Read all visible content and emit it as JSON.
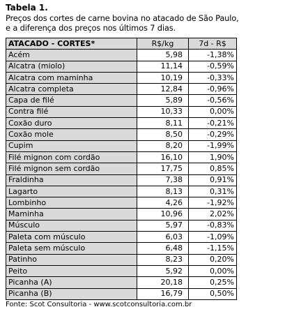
{
  "title": "Tabela 1.",
  "subtitle": [
    "Preços dos cortes de carne bovina no atacado de São Paulo,",
    "e a diferença dos preços nos últimos 7 dias."
  ],
  "table": {
    "header": [
      "ATACADO - CORTES*",
      "R$/kg",
      "7d - R$"
    ],
    "rows": [
      [
        "Acém",
        "5,98",
        "-1,38%"
      ],
      [
        "Alcatra (miolo)",
        "11,14",
        "-0,59%"
      ],
      [
        "Alcatra com maminha",
        "10,19",
        "-0,33%"
      ],
      [
        "Alcatra completa",
        "12,84",
        "-0,96%"
      ],
      [
        "Capa de filé",
        "5,89",
        "-0,56%"
      ],
      [
        "Contra filé",
        "10,33",
        "0,00%"
      ],
      [
        "Coxão duro",
        "8,11",
        "-0,21%"
      ],
      [
        "Coxão mole",
        "8,50",
        "-0,29%"
      ],
      [
        "Cupim",
        "8,20",
        "-1,99%"
      ],
      [
        "Filé mignon com cordão",
        "16,10",
        "1,90%"
      ],
      [
        "Filé mignon sem cordão",
        "17,75",
        "0,85%"
      ],
      [
        "Fraldinha",
        "7,38",
        "0,91%"
      ],
      [
        "Lagarto",
        "8,13",
        "0,31%"
      ],
      [
        "Lombinho",
        "4,26",
        "-1,92%"
      ],
      [
        "Maminha",
        "10,96",
        "2,02%"
      ],
      [
        "Músculo",
        "5,97",
        "-0,83%"
      ],
      [
        "Paleta com músculo",
        "6,03",
        "-1,09%"
      ],
      [
        "Paleta sem músculo",
        "6,48",
        "-1,15%"
      ],
      [
        "Patinho",
        "8,23",
        "0,20%"
      ],
      [
        "Peito",
        "5,92",
        "0,00%"
      ],
      [
        "Picanha (A)",
        "20,18",
        "0,25%"
      ],
      [
        "Picanha (B)",
        "16,79",
        "0,50%"
      ]
    ]
  },
  "footer": "Fonte: Scot Consultoria - www.scotconsultoria.com.br"
}
